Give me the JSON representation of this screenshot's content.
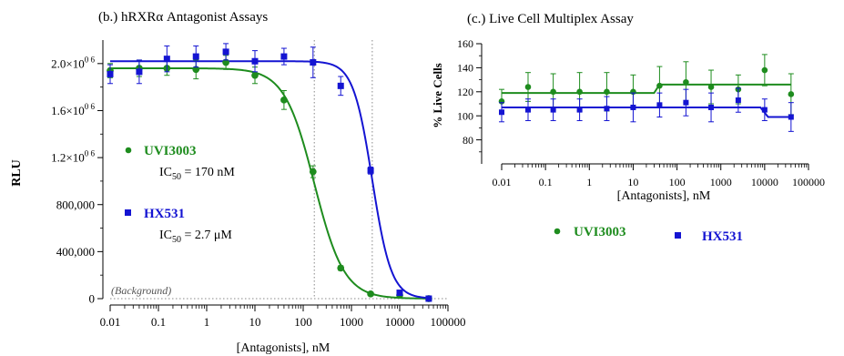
{
  "colors": {
    "green": "#1e8c1e",
    "blue": "#1414d2",
    "axis": "#000000",
    "guide": "#888888"
  },
  "chart_data": [
    {
      "type": "scatter",
      "title": "(b.) hRXRα Antagonist Assays",
      "xlabel": "[Antagonists], nM",
      "ylabel": "RLU",
      "xscale": "log",
      "xlim": [
        0.01,
        100000
      ],
      "ylim": [
        0,
        2200000
      ],
      "xticks": [
        0.01,
        0.1,
        1,
        10,
        100,
        1000,
        10000,
        100000
      ],
      "xticklabels": [
        "0.01",
        "0.1",
        "1",
        "10",
        "100",
        "1000",
        "10000",
        "100000"
      ],
      "yticks": [
        0,
        400000,
        800000,
        1200000,
        1600000,
        2000000
      ],
      "yticklabels": [
        "0",
        "400,000",
        "800,000",
        "1.2×10",
        "1.6×10",
        "2.0×10"
      ],
      "ytick_exponent": "0 6",
      "background_label": "(Background)",
      "guides_x": [
        170,
        2700
      ],
      "legend": [
        {
          "name": "UVI3003",
          "ic50_text": "IC",
          "ic50_sub": "50",
          "ic50_value": " = 170 nM"
        },
        {
          "name": "HX531",
          "ic50_text": "IC",
          "ic50_sub": "50",
          "ic50_value": " = 2.7 μM"
        }
      ],
      "series": [
        {
          "name": "UVI3003",
          "marker": "circle",
          "color": "#1e8c1e",
          "ic50": 170,
          "top": 1960000,
          "bottom": 0,
          "hill": 1.4,
          "x": [
            0.01,
            0.04,
            0.15,
            0.6,
            2.5,
            10,
            40,
            160,
            600,
            2500,
            10000,
            40000
          ],
          "y": [
            1940000,
            1960000,
            1960000,
            1950000,
            2010000,
            1900000,
            1690000,
            1080000,
            260000,
            40000,
            30000,
            0
          ],
          "err": [
            60000,
            70000,
            60000,
            80000,
            60000,
            70000,
            80000,
            50000,
            20000,
            15000,
            20000,
            10000
          ]
        },
        {
          "name": "HX531",
          "marker": "square",
          "color": "#1414d2",
          "ic50": 2700,
          "top": 2020000,
          "bottom": 0,
          "hill": 2.2,
          "x": [
            0.01,
            0.04,
            0.15,
            0.6,
            2.5,
            10,
            40,
            160,
            600,
            2500,
            10000,
            40000
          ],
          "y": [
            1910000,
            1930000,
            2040000,
            2060000,
            2100000,
            2020000,
            2060000,
            2010000,
            1810000,
            1090000,
            50000,
            0
          ],
          "err": [
            80000,
            100000,
            110000,
            90000,
            70000,
            90000,
            70000,
            130000,
            80000,
            30000,
            20000,
            10000
          ]
        }
      ]
    },
    {
      "type": "scatter",
      "title": "(c.) Live Cell Multiplex Assay",
      "xlabel": "[Antagonists], nM",
      "ylabel": "% Live Cells",
      "xscale": "log",
      "xlim": [
        0.01,
        100000
      ],
      "ylim": [
        60,
        160
      ],
      "xticks": [
        0.01,
        0.1,
        1,
        10,
        100,
        1000,
        10000,
        100000
      ],
      "xticklabels": [
        "0.01",
        "0.1",
        "1",
        "10",
        "100",
        "1000",
        "10000",
        "100000"
      ],
      "yticks": [
        80,
        100,
        120,
        140,
        160
      ],
      "yticklabels": [
        "80",
        "100",
        "120",
        "140",
        "160"
      ],
      "legend": [
        {
          "name": "UVI3003"
        },
        {
          "name": "HX531"
        }
      ],
      "series": [
        {
          "name": "UVI3003",
          "marker": "circle",
          "color": "#1e8c1e",
          "fit_steps": [
            [
              0.01,
              119
            ],
            [
              30,
              119
            ],
            [
              40,
              126
            ],
            [
              40000,
              126
            ]
          ],
          "x": [
            0.01,
            0.04,
            0.15,
            0.6,
            2.5,
            10,
            40,
            160,
            600,
            2500,
            10000,
            40000
          ],
          "y": [
            112,
            124,
            120,
            120,
            120,
            120,
            125,
            128,
            124,
            122,
            138,
            118
          ],
          "err": [
            10,
            12,
            15,
            16,
            16,
            14,
            16,
            17,
            14,
            12,
            13,
            17
          ]
        },
        {
          "name": "HX531",
          "marker": "square",
          "color": "#1414d2",
          "fit_steps": [
            [
              0.01,
              107
            ],
            [
              8000,
              107
            ],
            [
              12000,
              99
            ],
            [
              40000,
              99
            ]
          ],
          "x": [
            0.01,
            0.04,
            0.15,
            0.6,
            2.5,
            10,
            40,
            160,
            600,
            2500,
            10000,
            40000
          ],
          "y": [
            103,
            105,
            105,
            105,
            106,
            107,
            109,
            111,
            107,
            113,
            105,
            99
          ],
          "err": [
            8,
            9,
            9,
            9,
            10,
            12,
            10,
            11,
            12,
            10,
            9,
            12
          ]
        }
      ]
    }
  ]
}
